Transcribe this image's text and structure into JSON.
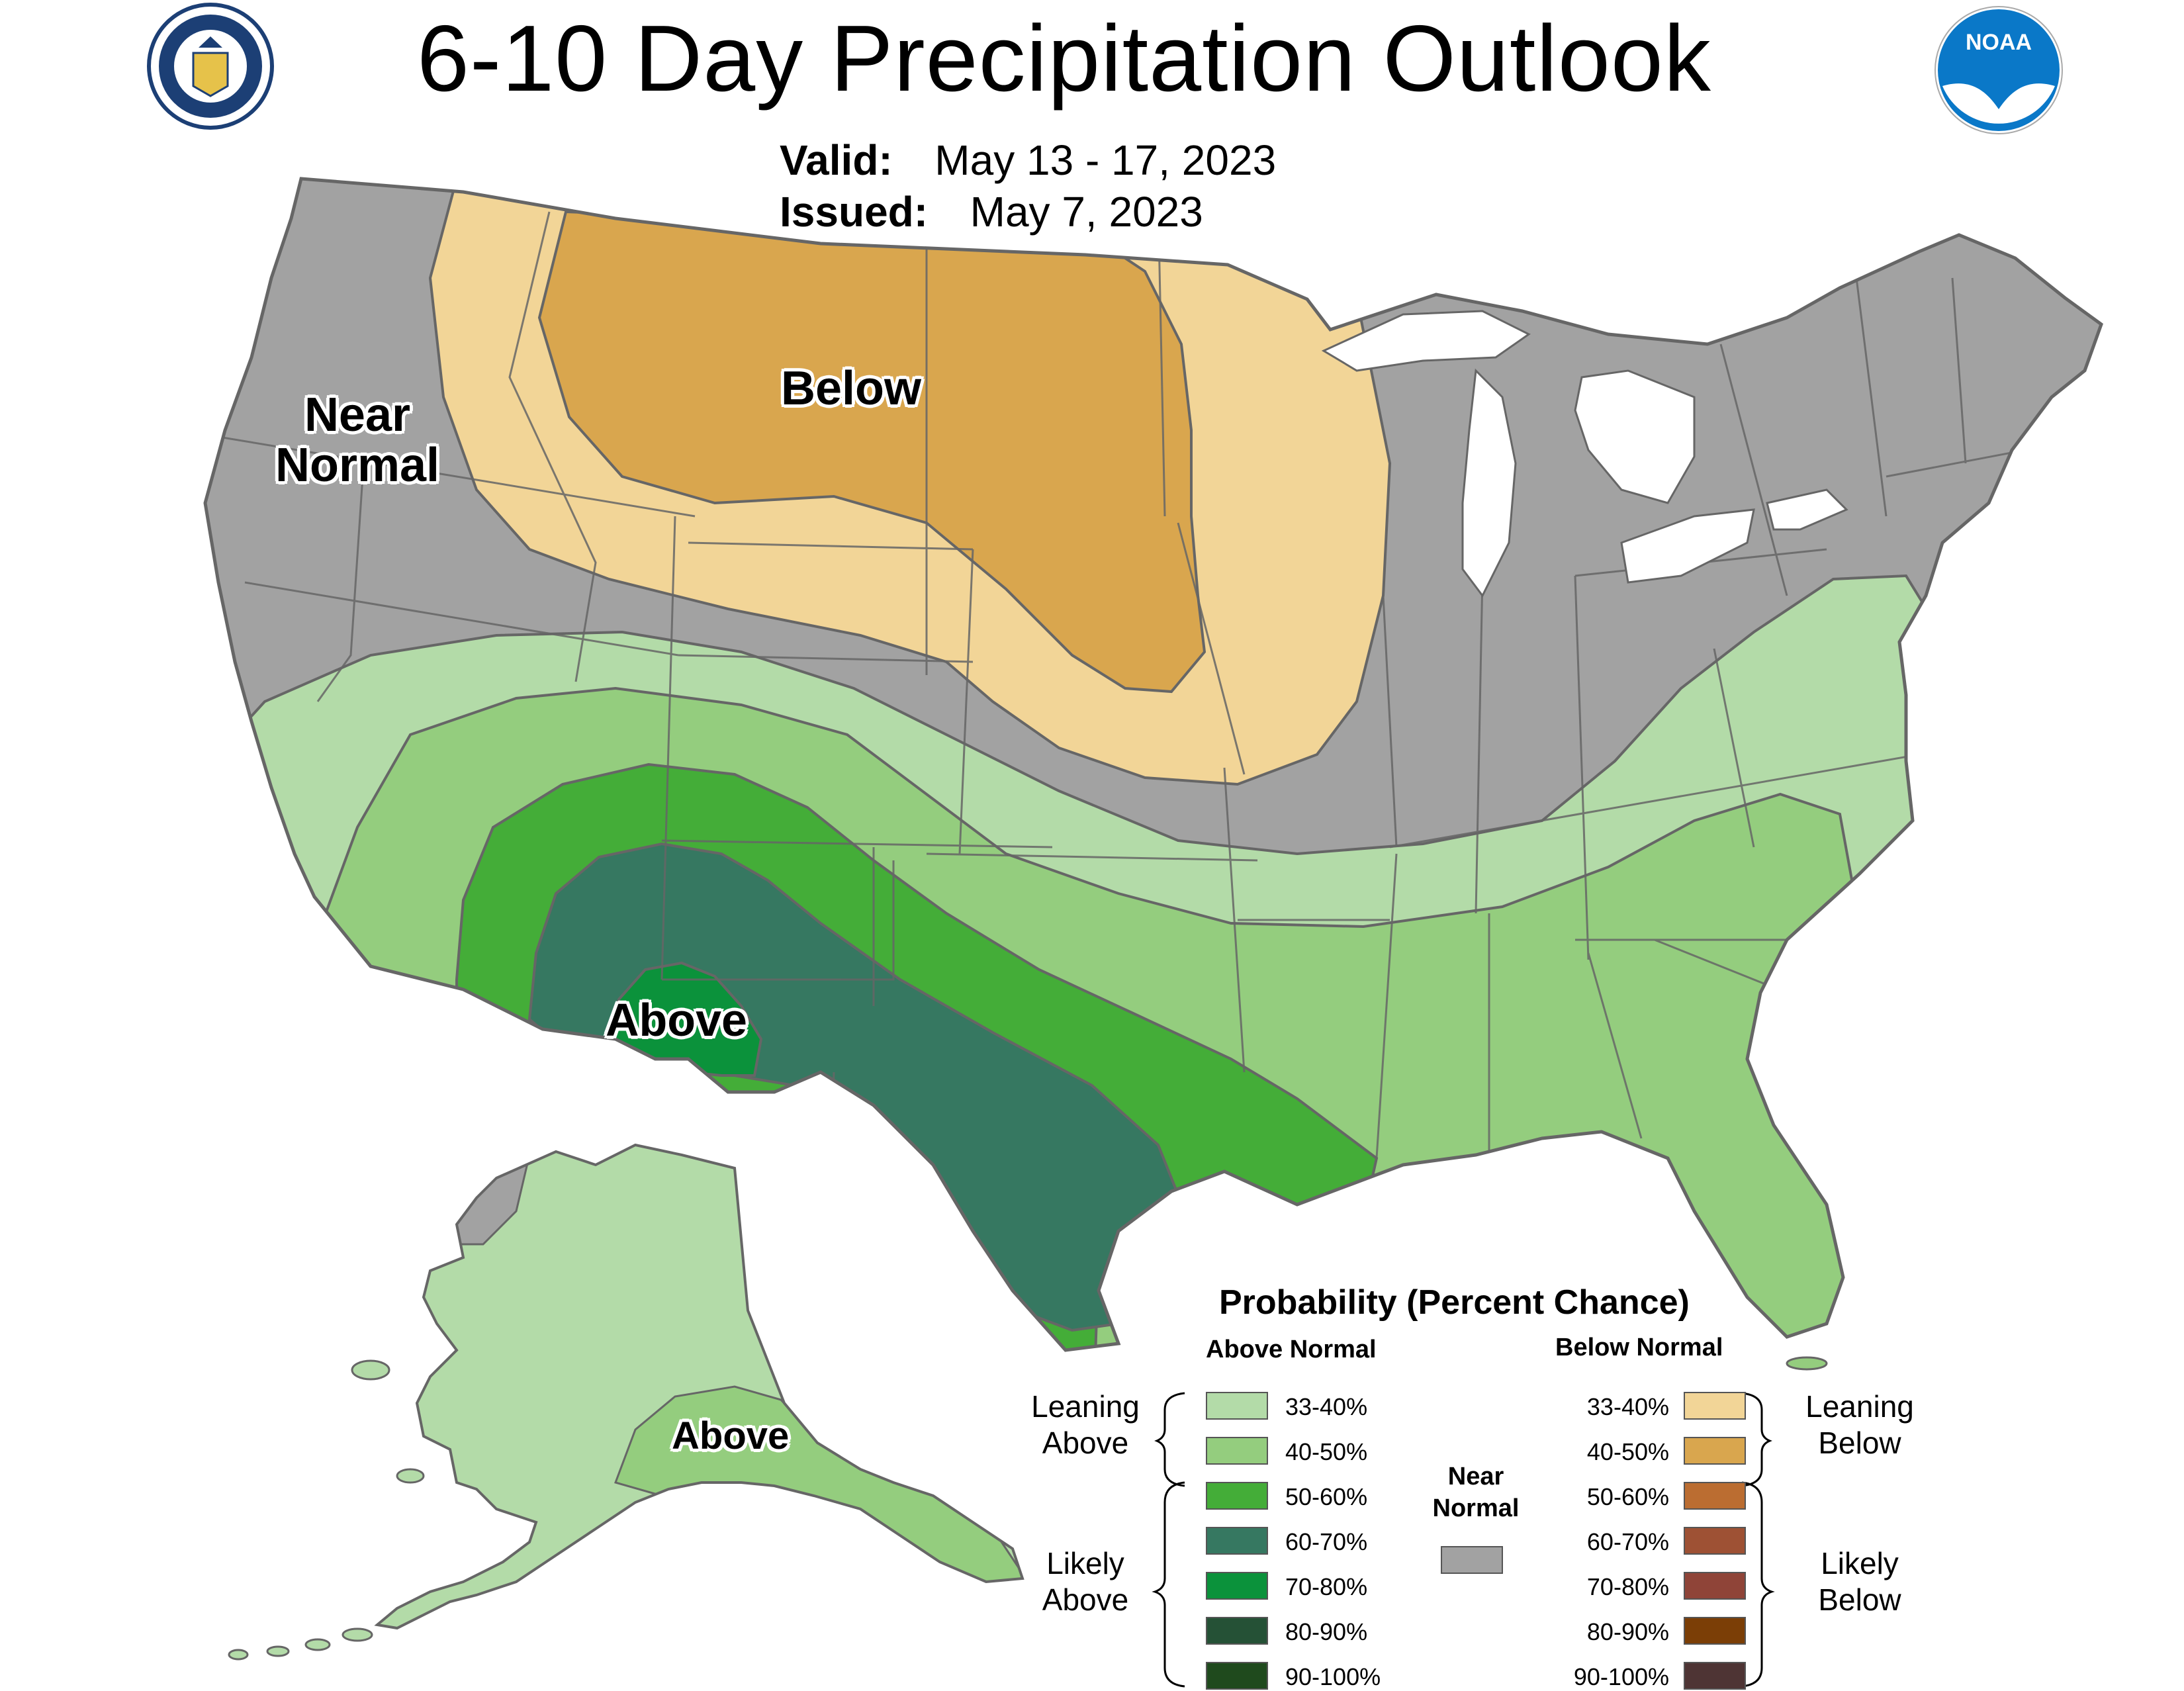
{
  "header": {
    "title": "6-10 Day Precipitation Outlook",
    "valid_label": "Valid:",
    "valid_value": "May 13 - 17, 2023",
    "issued_label": "Issued:",
    "issued_value": "May 7, 2023"
  },
  "map_labels": {
    "near_normal": "Near Normal",
    "below": "Below",
    "above_conus": "Above",
    "above_alaska": "Above"
  },
  "legend": {
    "title": "Probability (Percent Chance)",
    "above_heading": "Above Normal",
    "below_heading": "Below Normal",
    "near_normal_label": "Near Normal",
    "leaning_above": "Leaning Above",
    "likely_above": "Likely Above",
    "leaning_below": "Leaning Below",
    "likely_below": "Likely Below",
    "above_levels": [
      {
        "label": "33-40%",
        "color": "#b3dba8"
      },
      {
        "label": "40-50%",
        "color": "#94cd7e"
      },
      {
        "label": "50-60%",
        "color": "#44ad38"
      },
      {
        "label": "60-70%",
        "color": "#367861"
      },
      {
        "label": "70-80%",
        "color": "#0b923b"
      },
      {
        "label": "80-90%",
        "color": "#255136"
      },
      {
        "label": "90-100%",
        "color": "#1f4a1d"
      }
    ],
    "below_levels": [
      {
        "label": "33-40%",
        "color": "#f2d597"
      },
      {
        "label": "40-50%",
        "color": "#d9a64e"
      },
      {
        "label": "50-60%",
        "color": "#bb6d31"
      },
      {
        "label": "60-70%",
        "color": "#9e5134"
      },
      {
        "label": "70-80%",
        "color": "#8f4438"
      },
      {
        "label": "80-90%",
        "color": "#7b3e06"
      },
      {
        "label": "90-100%",
        "color": "#4e3434"
      }
    ],
    "near_normal_color": "#a2a2a2"
  },
  "colors": {
    "near_normal": "#a2a2a2",
    "lean_above": "#b3dba8",
    "above_40_50": "#94cd7e",
    "above_50_60": "#44ad38",
    "above_60_70": "#367861",
    "above_70_80": "#0b923b",
    "lean_below": "#f2d597",
    "below_40_50": "#d9a64e",
    "noaa_blue": "#0a78c8",
    "doc_navy": "#1c3f75"
  }
}
